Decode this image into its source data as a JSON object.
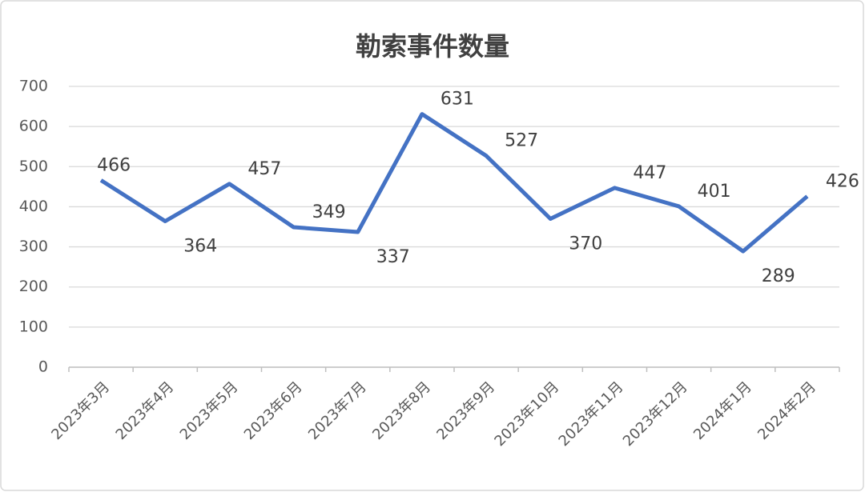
{
  "chart_data": {
    "type": "line",
    "title": "勒索事件数量",
    "categories": [
      "2023年3月",
      "2023年4月",
      "2023年5月",
      "2023年6月",
      "2023年7月",
      "2023年8月",
      "2023年9月",
      "2023年10月",
      "2023年11月",
      "2023年12月",
      "2024年1月",
      "2024年2月"
    ],
    "values": [
      466,
      364,
      457,
      349,
      337,
      631,
      527,
      370,
      447,
      401,
      289,
      426
    ],
    "color": "#4472c4",
    "ylim": [
      0,
      700
    ],
    "yticks": [
      0,
      100,
      200,
      300,
      400,
      500,
      600,
      700
    ],
    "grid": true
  }
}
